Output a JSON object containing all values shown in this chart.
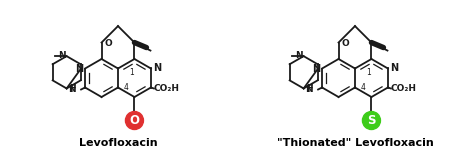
{
  "background_color": "#ffffff",
  "left_label": "Levofloxacin",
  "right_label": "\"Thionated\" Levofloxacin",
  "left_atom_label": "O",
  "right_atom_label": "S",
  "left_atom_color": "#e03030",
  "right_atom_color": "#3dcc1a",
  "bond_color": "#1a1a1a",
  "bond_lw": 1.3,
  "inner_lw": 0.9,
  "label_fontsize": 8.0,
  "fig_width": 4.74,
  "fig_height": 1.53
}
